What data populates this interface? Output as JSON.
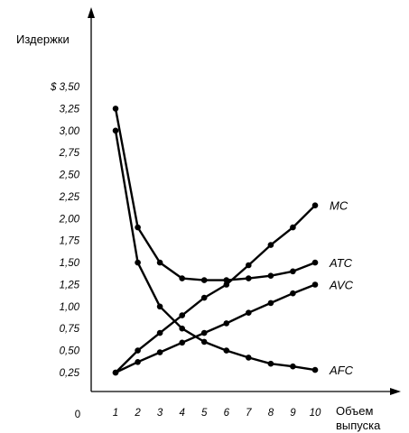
{
  "chart_data": {
    "type": "line",
    "ylabel": "Издержки",
    "xlabel_lines": [
      "Объем",
      "выпуска"
    ],
    "origin_label": "0",
    "x": [
      1,
      2,
      3,
      4,
      5,
      6,
      7,
      8,
      9,
      10
    ],
    "xlim": [
      0,
      10
    ],
    "ylim": [
      0,
      3.5
    ],
    "x_tick_labels": [
      "1",
      "2",
      "3",
      "4",
      "5",
      "6",
      "7",
      "8",
      "9",
      "10"
    ],
    "y_tick_values": [
      0.25,
      0.5,
      0.75,
      1.0,
      1.25,
      1.5,
      1.75,
      2.0,
      2.25,
      2.5,
      2.75,
      3.0,
      3.25,
      3.5
    ],
    "y_tick_labels": [
      "0,25",
      "0,50",
      "0,75",
      "1,00",
      "1,25",
      "1,50",
      "1,75",
      "2,00",
      "2,25",
      "2,50",
      "2,75",
      "3,00",
      "3,25",
      "$ 3,50"
    ],
    "grid": false,
    "series": [
      {
        "name": "MC",
        "values": [
          0.25,
          0.5,
          0.7,
          0.9,
          1.1,
          1.25,
          1.47,
          1.7,
          1.9,
          2.15
        ]
      },
      {
        "name": "ATC",
        "values": [
          3.25,
          1.9,
          1.5,
          1.32,
          1.3,
          1.3,
          1.32,
          1.35,
          1.4,
          1.5
        ]
      },
      {
        "name": "AVC",
        "values": [
          0.25,
          0.37,
          0.48,
          0.59,
          0.7,
          0.81,
          0.93,
          1.04,
          1.15,
          1.25
        ]
      },
      {
        "name": "AFC",
        "values": [
          3.0,
          1.5,
          1.0,
          0.75,
          0.6,
          0.5,
          0.42,
          0.35,
          0.32,
          0.28
        ]
      }
    ]
  }
}
